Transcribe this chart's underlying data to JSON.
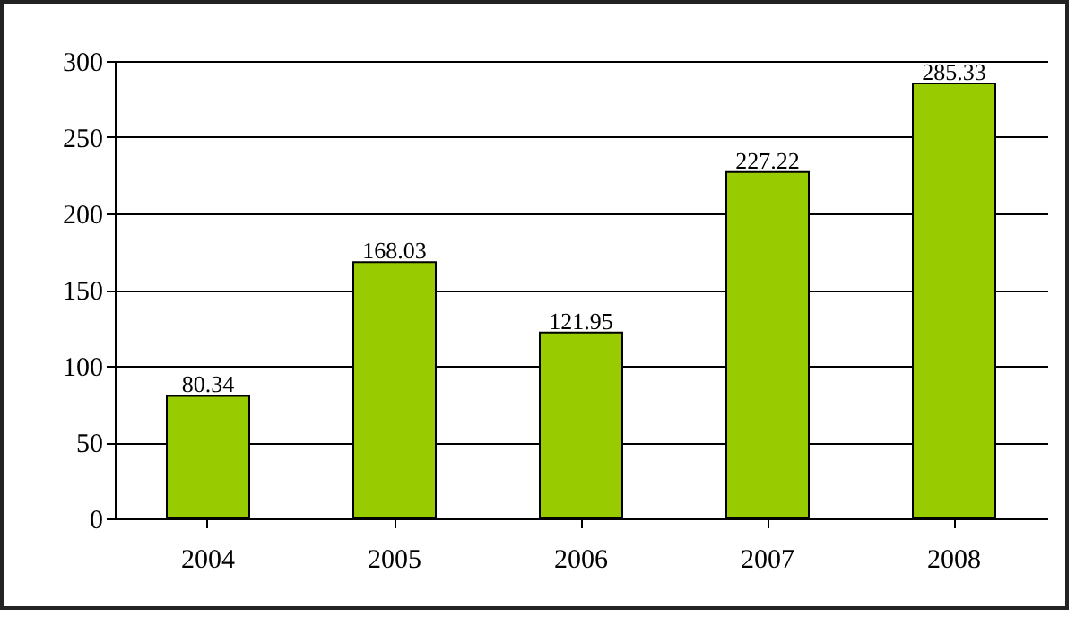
{
  "chart_data": {
    "type": "bar",
    "categories": [
      "2004",
      "2005",
      "2006",
      "2007",
      "2008"
    ],
    "values": [
      80.34,
      168.03,
      121.95,
      227.22,
      285.33
    ],
    "color": "#99cc00",
    "ylim": [
      0,
      300
    ],
    "yticks": [
      0,
      50,
      100,
      150,
      200,
      250,
      300
    ],
    "grid": "y",
    "data_labels": true
  }
}
